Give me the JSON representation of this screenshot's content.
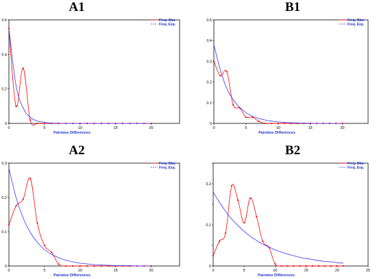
{
  "chart_data": [
    {
      "type": "line",
      "title": "A1",
      "xlabel": "Pairwise Differences",
      "xlim": [
        0,
        24
      ],
      "ylim": [
        0,
        0.6
      ],
      "xticks": [
        0,
        5,
        10,
        15,
        20
      ],
      "yticks": [
        0,
        0.2,
        0.4,
        0.6
      ],
      "ytick_labels": [
        "0",
        "0.2",
        "0.4",
        "0.6"
      ],
      "legend": "top-right",
      "series": [
        {
          "name": "Freq. Obs.",
          "color": "#ff0000",
          "style": "solid",
          "markers": true,
          "x": [
            0,
            1,
            2,
            3,
            4,
            5,
            6,
            7,
            8,
            9,
            10,
            11,
            12,
            13,
            14,
            15,
            16,
            17,
            18,
            19,
            20
          ],
          "y": [
            0.55,
            0.1,
            0.32,
            0.02,
            0,
            0,
            0,
            0,
            0,
            0,
            0,
            0,
            0,
            0,
            0,
            0,
            0,
            0,
            0,
            0,
            0
          ]
        },
        {
          "name": "Freq. Exp.",
          "color": "#3333ff",
          "style": "solid",
          "markers": false,
          "x": [
            0,
            1,
            2,
            3,
            4,
            5,
            6,
            7,
            8,
            9,
            10,
            11,
            12,
            13,
            14,
            15,
            16,
            17,
            18,
            19,
            20
          ],
          "y": [
            0.55,
            0.22,
            0.09,
            0.035,
            0.014,
            0.006,
            0.002,
            0.001,
            0,
            0,
            0,
            0,
            0,
            0,
            0,
            0,
            0,
            0,
            0,
            0,
            0
          ]
        }
      ]
    },
    {
      "type": "line",
      "title": "B1",
      "xlabel": "Pairwise Differences",
      "xlim": [
        0,
        24
      ],
      "ylim": [
        0,
        0.5
      ],
      "xticks": [
        0,
        5,
        10,
        15,
        20
      ],
      "yticks": [
        0,
        0.1,
        0.2,
        0.3,
        0.4,
        0.5
      ],
      "ytick_labels": [
        "0",
        "0.1",
        "0.2",
        "0.3",
        "0.4",
        "0.5"
      ],
      "legend": "top-right",
      "series": [
        {
          "name": "Freq. Obs.",
          "color": "#ff0000",
          "style": "solid",
          "markers": true,
          "x": [
            0,
            1,
            2,
            3,
            4,
            5,
            6,
            7,
            8,
            9,
            10,
            11,
            12,
            13,
            14,
            15,
            16,
            17,
            18,
            19,
            20
          ],
          "y": [
            0.3,
            0.23,
            0.25,
            0.09,
            0.075,
            0.03,
            0.03,
            0.01,
            0,
            0,
            0,
            0,
            0,
            0,
            0,
            0,
            0,
            0,
            0,
            0,
            0
          ]
        },
        {
          "name": "Freq. Exp.",
          "color": "#3333ff",
          "style": "solid",
          "markers": false,
          "x": [
            0,
            1,
            2,
            3,
            4,
            5,
            6,
            7,
            8,
            9,
            10,
            11,
            12,
            13,
            14,
            15,
            16,
            17,
            18,
            19,
            20
          ],
          "y": [
            0.38,
            0.26,
            0.17,
            0.115,
            0.078,
            0.052,
            0.035,
            0.024,
            0.016,
            0.011,
            0.007,
            0.005,
            0.003,
            0.002,
            0.001,
            0.001,
            0,
            0,
            0,
            0,
            0
          ]
        }
      ]
    },
    {
      "type": "line",
      "title": "A2",
      "xlabel": "Pairwise Differences",
      "xlim": [
        0,
        24
      ],
      "ylim": [
        0,
        0.3
      ],
      "xticks": [
        0,
        5,
        10,
        15,
        20
      ],
      "yticks": [
        0,
        0.1,
        0.2,
        0.3
      ],
      "ytick_labels": [
        "0",
        "0.1",
        "0.2",
        "0.3"
      ],
      "legend": "top-right",
      "series": [
        {
          "name": "Freq. Obs.",
          "color": "#ff0000",
          "style": "solid",
          "markers": true,
          "x": [
            0,
            1,
            2,
            3,
            4,
            5,
            6,
            7,
            8,
            9,
            10,
            11,
            12,
            13,
            14,
            15,
            16,
            17,
            18,
            19,
            20
          ],
          "y": [
            0.12,
            0.175,
            0.195,
            0.255,
            0.125,
            0.06,
            0.04,
            0.005,
            0,
            0,
            0,
            0,
            0,
            0,
            0,
            0,
            0,
            0,
            0,
            0,
            0
          ]
        },
        {
          "name": "Freq. Exp.",
          "color": "#3333ff",
          "style": "solid",
          "markers": false,
          "x": [
            0,
            1,
            2,
            3,
            4,
            5,
            6,
            7,
            8,
            9,
            10,
            11,
            12,
            13,
            14,
            15,
            16,
            17,
            18,
            19,
            20
          ],
          "y": [
            0.285,
            0.2,
            0.14,
            0.098,
            0.069,
            0.048,
            0.034,
            0.024,
            0.017,
            0.012,
            0.008,
            0.006,
            0.004,
            0.003,
            0.002,
            0.001,
            0.001,
            0.001,
            0,
            0,
            0
          ]
        }
      ]
    },
    {
      "type": "line",
      "title": "B2",
      "xlabel": "Pairwise Differences",
      "xlim": [
        0,
        25
      ],
      "ylim": [
        0,
        0.25
      ],
      "xticks": [
        0,
        5,
        10,
        15,
        20,
        25
      ],
      "yticks": [
        0,
        0.05,
        0.1,
        0.15,
        0.2,
        0.25
      ],
      "ytick_labels": [
        "0",
        "",
        "0.1",
        "",
        "0.2",
        ""
      ],
      "legend": "top-right",
      "series": [
        {
          "name": "Freq. Obs.",
          "color": "#ff0000",
          "style": "solid",
          "markers": true,
          "x": [
            0,
            1,
            2,
            3,
            4,
            5,
            6,
            7,
            8,
            9,
            10,
            11,
            12,
            13,
            14,
            15,
            16,
            17,
            18,
            19,
            20,
            21
          ],
          "y": [
            0.025,
            0.06,
            0.08,
            0.195,
            0.16,
            0.105,
            0.165,
            0.12,
            0.06,
            0.045,
            0.005,
            0,
            0,
            0,
            0,
            0,
            0,
            0,
            0,
            0,
            0,
            0
          ]
        },
        {
          "name": "Freq. Exp.",
          "color": "#3333ff",
          "style": "solid",
          "markers": false,
          "x": [
            0,
            1,
            2,
            3,
            4,
            5,
            6,
            7,
            8,
            9,
            10,
            11,
            12,
            13,
            14,
            15,
            16,
            17,
            18,
            19,
            20,
            21
          ],
          "y": [
            0.18,
            0.155,
            0.133,
            0.114,
            0.098,
            0.084,
            0.072,
            0.062,
            0.053,
            0.046,
            0.039,
            0.034,
            0.029,
            0.025,
            0.021,
            0.018,
            0.016,
            0.013,
            0.011,
            0.01,
            0.008,
            0.007
          ]
        }
      ]
    }
  ]
}
